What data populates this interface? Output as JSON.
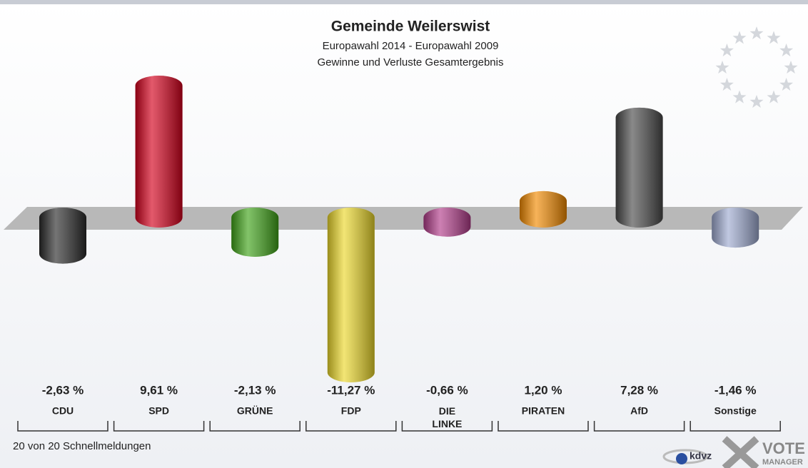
{
  "chart_data": {
    "type": "bar",
    "title": "Gemeinde Weilerswist",
    "subtitle": [
      "Europawahl 2014 - Europawahl 2009",
      "Gewinne und Verluste Gesamtergebnis"
    ],
    "categories": [
      "CDU",
      "SPD",
      "GRÜNE",
      "FDP",
      "DIE LINKE",
      "PIRATEN",
      "AfD",
      "Sonstige"
    ],
    "values": [
      -2.63,
      9.61,
      -2.13,
      -11.27,
      -0.66,
      1.2,
      7.28,
      -1.46
    ],
    "value_labels": [
      "-2,63 %",
      "9,61 %",
      "-2,13 %",
      "-11,27 %",
      "-0,66 %",
      "1,20 %",
      "7,28 %",
      "-1,46 %"
    ],
    "colors": [
      "#2a2a2a",
      "#d4001c",
      "#3fa318",
      "#ecd82a",
      "#b23c8a",
      "#f28a00",
      "#4a4a4a",
      "#9eaad0"
    ],
    "footer": "20 von 20 Schnellmeldungen",
    "logo": [
      "kdvz",
      "VOTE",
      "MANAGER"
    ]
  }
}
